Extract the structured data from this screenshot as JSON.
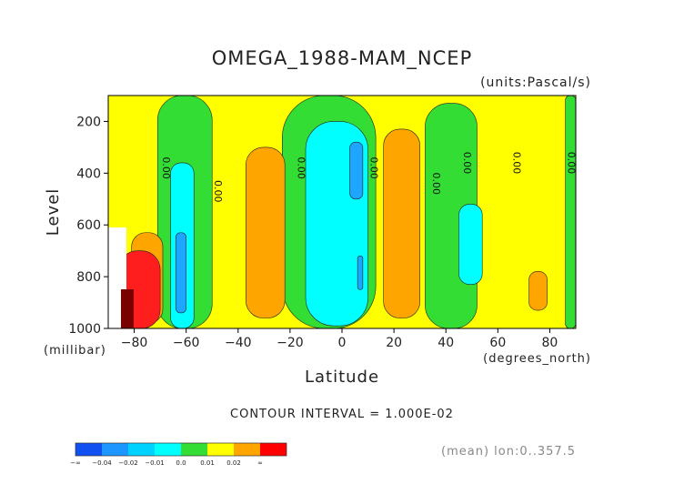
{
  "chart_data": {
    "type": "contour",
    "title": "OMEGA_1988-MAM_NCEP",
    "units_note": "(units:Pascal/s)",
    "xlabel": "Latitude",
    "ylabel": "Level",
    "x_unit_note": "(degrees_north)",
    "y_unit_note": "(millibar)",
    "x_range": [
      -90,
      90
    ],
    "y_range": [
      1000,
      100
    ],
    "x_ticks": [
      -80,
      -60,
      -40,
      -20,
      0,
      20,
      40,
      60,
      80
    ],
    "y_ticks": [
      200,
      400,
      600,
      800,
      1000
    ],
    "contour_interval_text": "CONTOUR INTERVAL = 1.000E-02",
    "contour_labels": [
      {
        "text": "0.00",
        "x": -69,
        "y": 380
      },
      {
        "text": "0.00",
        "x": -49,
        "y": 470
      },
      {
        "text": "0.00",
        "x": -17,
        "y": 380
      },
      {
        "text": "0.00",
        "x": 11,
        "y": 380
      },
      {
        "text": "0.00",
        "x": 35,
        "y": 440
      },
      {
        "text": "0.00",
        "x": 47,
        "y": 360
      },
      {
        "text": "0.00",
        "x": 66,
        "y": 360
      },
      {
        "text": "0.00",
        "x": 87,
        "y": 360
      }
    ],
    "bands": [
      {
        "name": "green",
        "range": [
          -0.01,
          0.0
        ],
        "color": "#33dd33",
        "regions": [
          {
            "x": [
              -71,
              -50
            ],
            "y": [
              100,
              1000
            ]
          },
          {
            "x": [
              -23,
              13
            ],
            "y": [
              100,
              1000
            ]
          },
          {
            "x": [
              32,
              52
            ],
            "y": [
              130,
              1000
            ]
          },
          {
            "x": [
              86,
              90
            ],
            "y": [
              100,
              1000
            ]
          }
        ]
      },
      {
        "name": "cyan",
        "range": [
          -0.02,
          -0.01
        ],
        "color": "#00ffff",
        "regions": [
          {
            "x": [
              -66,
              -57
            ],
            "y": [
              360,
              1000
            ]
          },
          {
            "x": [
              -14,
              10
            ],
            "y": [
              200,
              990
            ]
          },
          {
            "x": [
              45,
              54
            ],
            "y": [
              520,
              830
            ]
          }
        ]
      },
      {
        "name": "lightblue",
        "range": [
          -0.03,
          -0.02
        ],
        "color": "#1ea5ff",
        "regions": [
          {
            "x": [
              -64,
              -60
            ],
            "y": [
              630,
              940
            ]
          },
          {
            "x": [
              3,
              8
            ],
            "y": [
              280,
              500
            ]
          },
          {
            "x": [
              6,
              8
            ],
            "y": [
              720,
              850
            ]
          }
        ]
      },
      {
        "name": "orange",
        "range": [
          0.01,
          0.02
        ],
        "color": "#ffa500",
        "regions": [
          {
            "x": [
              -37,
              -22
            ],
            "y": [
              300,
              960
            ]
          },
          {
            "x": [
              16,
              30
            ],
            "y": [
              230,
              960
            ]
          },
          {
            "x": [
              72,
              79
            ],
            "y": [
              780,
              930
            ]
          },
          {
            "x": [
              -81,
              -69
            ],
            "y": [
              630,
              980
            ]
          }
        ]
      },
      {
        "name": "red",
        "range": [
          0.02,
          "inf"
        ],
        "color": "#ff1e1e",
        "regions": [
          {
            "x": [
              -86,
              -70
            ],
            "y": [
              700,
              1000
            ]
          }
        ]
      }
    ],
    "legend_colorbar": {
      "colors": [
        "#1050f0",
        "#1e96ff",
        "#00d2ff",
        "#00ffff",
        "#33dd33",
        "#ffff00",
        "#ffa500",
        "#ff0000"
      ],
      "labels": [
        "-∞",
        "-0.04",
        "-0.02",
        "-0.01",
        "0.0",
        "0.01",
        "0.02",
        "∞"
      ]
    },
    "footnote": "(mean) lon:0..357.5"
  }
}
